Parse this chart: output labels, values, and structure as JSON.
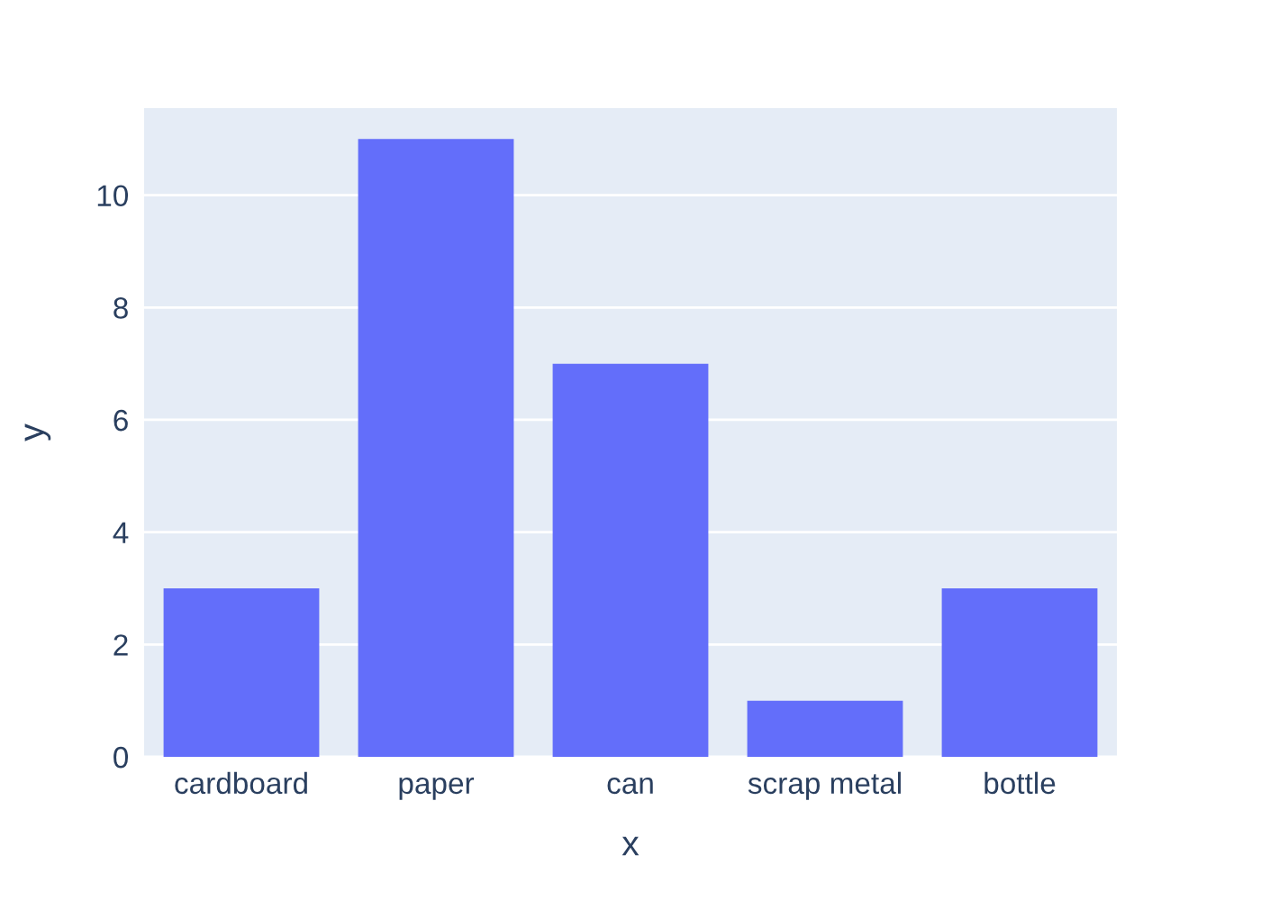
{
  "chart_data": {
    "type": "bar",
    "xlabel": "x",
    "ylabel": "y",
    "categories": [
      "cardboard",
      "paper",
      "can",
      "scrap metal",
      "bottle"
    ],
    "values": [
      3,
      11,
      7,
      1,
      3
    ],
    "color": "#636efa",
    "ylim": [
      0,
      11.55
    ],
    "yticks": [
      0,
      2,
      4,
      6,
      8,
      10
    ],
    "grid": "y"
  }
}
